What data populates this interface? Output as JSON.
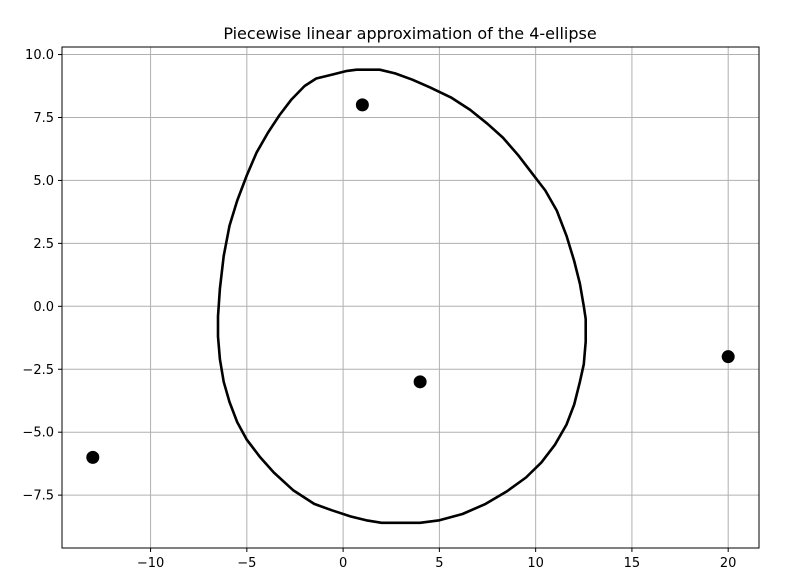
{
  "chart_data": {
    "type": "scatter",
    "title": "Piecewise linear approximation of the 4-ellipse",
    "xlabel": "",
    "ylabel": "",
    "xlim": [
      -14.6,
      21.6
    ],
    "ylim": [
      -9.6,
      10.3
    ],
    "grid": true,
    "x_ticks": [
      -10,
      -5,
      0,
      5,
      10,
      15,
      20
    ],
    "y_ticks": [
      -7.5,
      -5.0,
      -2.5,
      0.0,
      2.5,
      5.0,
      7.5,
      10.0
    ],
    "x_tick_labels": [
      "−10",
      "−5",
      "0",
      "5",
      "10",
      "15",
      "20"
    ],
    "y_tick_labels": [
      "−7.5",
      "−5.0",
      "−2.5",
      "0.0",
      "2.5",
      "5.0",
      "7.5",
      "10.0"
    ],
    "colors": {
      "curve": "#000000",
      "points": "#000000",
      "grid": "#b0b0b0"
    },
    "series": [
      {
        "kind": "points",
        "x": [
          1,
          4,
          20,
          -13
        ],
        "y": [
          8,
          -3,
          -2,
          -6
        ]
      },
      {
        "kind": "line",
        "x": [
          1.3,
          1.9,
          2.7,
          3.6,
          4.5,
          5.6,
          6.6,
          7.5,
          8.3,
          9.1,
          9.8,
          10.5,
          11.1,
          11.6,
          12.0,
          12.3,
          12.5,
          12.6,
          12.6,
          12.5,
          12.3,
          12.0,
          11.6,
          11.0,
          10.3,
          9.5,
          8.5,
          7.4,
          6.2,
          5.0,
          4.0,
          3.0,
          2.0,
          1.2,
          0.4,
          -0.6,
          -1.5,
          -2.6,
          -3.6,
          -4.3,
          -5.0,
          -5.5,
          -5.9,
          -6.2,
          -6.4,
          -6.5,
          -6.5,
          -6.4,
          -6.2,
          -5.9,
          -5.5,
          -5.0,
          -4.5,
          -3.9,
          -3.3,
          -2.7,
          -2.0,
          -1.4,
          -0.6,
          0.2,
          0.7,
          1.3
        ],
        "y": [
          9.4,
          9.4,
          9.25,
          9.0,
          8.7,
          8.3,
          7.8,
          7.25,
          6.7,
          6.0,
          5.3,
          4.6,
          3.8,
          2.8,
          1.8,
          0.9,
          0.0,
          -0.5,
          -1.4,
          -2.3,
          -3.0,
          -3.9,
          -4.7,
          -5.5,
          -6.2,
          -6.8,
          -7.35,
          -7.85,
          -8.25,
          -8.5,
          -8.6,
          -8.6,
          -8.6,
          -8.5,
          -8.35,
          -8.1,
          -7.85,
          -7.3,
          -6.6,
          -6.0,
          -5.3,
          -4.6,
          -3.8,
          -3.0,
          -2.1,
          -1.2,
          -0.4,
          0.7,
          2.0,
          3.2,
          4.2,
          5.2,
          6.1,
          6.9,
          7.6,
          8.2,
          8.75,
          9.05,
          9.2,
          9.35,
          9.4,
          9.4
        ]
      }
    ]
  }
}
